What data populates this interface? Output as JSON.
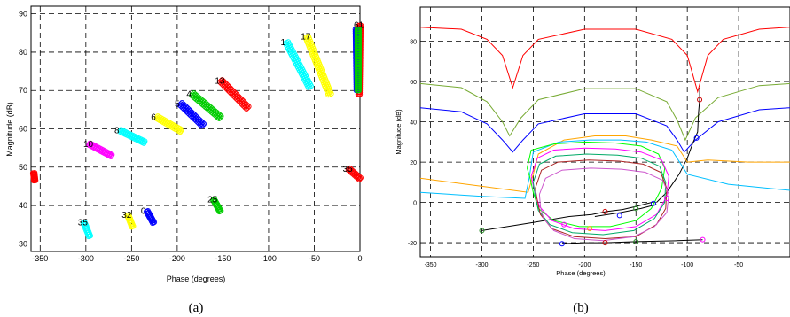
{
  "chart_data": [
    {
      "panel": "(a)",
      "type": "scatter",
      "xlabel": "Phase (degrees)",
      "ylabel": "Magnitude (dB)",
      "xlim": [
        -360,
        0
      ],
      "ylim": [
        28,
        92
      ],
      "xticks": [
        -350,
        -300,
        -250,
        -200,
        -150,
        -100,
        -50,
        0
      ],
      "yticks": [
        30,
        40,
        50,
        60,
        70,
        80,
        90
      ],
      "grid": "dashed",
      "clusters": [
        {
          "label": "1",
          "color": "#00ffff",
          "x0": -80,
          "y0": 82.5,
          "x1": -55,
          "y1": 71,
          "width": 4
        },
        {
          "label": "17",
          "color": "#ffff00",
          "x0": -58,
          "y0": 84,
          "x1": -33,
          "y1": 69,
          "width": 4
        },
        {
          "label": "61",
          "color": "#ff0000",
          "x0": 0,
          "y0": 87,
          "x1": -1,
          "y1": 69,
          "width": 2.5
        },
        {
          "label": "",
          "color": "#0000ff",
          "x0": -4,
          "y0": 86,
          "x1": -3,
          "y1": 70,
          "width": 2.5
        },
        {
          "label": "",
          "color": "#00cc00",
          "x0": -2,
          "y0": 86,
          "x1": -2,
          "y1": 70,
          "width": 2.5
        },
        {
          "label": "13",
          "color": "#ff0000",
          "x0": -152,
          "y0": 72.5,
          "x1": -123,
          "y1": 65.5,
          "width": 4
        },
        {
          "label": "4",
          "color": "#00cc00",
          "x0": -183,
          "y0": 69,
          "x1": -153,
          "y1": 63,
          "width": 4
        },
        {
          "label": "5",
          "color": "#0000ff",
          "x0": -196,
          "y0": 66.5,
          "x1": -172,
          "y1": 61,
          "width": 4
        },
        {
          "label": "6",
          "color": "#ffff00",
          "x0": -222,
          "y0": 63,
          "x1": -196,
          "y1": 59.5,
          "width": 3.5
        },
        {
          "label": "8",
          "color": "#00ffff",
          "x0": -262,
          "y0": 59.5,
          "x1": -236,
          "y1": 56.5,
          "width": 3
        },
        {
          "label": "10",
          "color": "#ff00ff",
          "x0": -296,
          "y0": 56,
          "x1": -272,
          "y1": 53,
          "width": 3
        },
        {
          "label": "",
          "color": "#ff0000",
          "x0": -357,
          "y0": 48.5,
          "x1": -356,
          "y1": 46.5,
          "width": 2.5
        },
        {
          "label": "35",
          "color": "#ff0000",
          "x0": -12,
          "y0": 49.5,
          "x1": 0,
          "y1": 47,
          "width": 3
        },
        {
          "label": "25",
          "color": "#00cc00",
          "x0": -160,
          "y0": 41.5,
          "x1": -153,
          "y1": 38.5,
          "width": 2.5
        },
        {
          "label": "0",
          "color": "#0000ff",
          "x0": -233,
          "y0": 38.5,
          "x1": -226,
          "y1": 35.5,
          "width": 2.5
        },
        {
          "label": "32",
          "color": "#ffff00",
          "x0": -254,
          "y0": 37.5,
          "x1": -249,
          "y1": 34.5,
          "width": 2.5
        },
        {
          "label": "35",
          "color": "#00ffff",
          "x0": -302,
          "y0": 35.5,
          "x1": -296,
          "y1": 32,
          "width": 2.5
        }
      ]
    },
    {
      "panel": "(b)",
      "type": "line",
      "xlabel": "Phase (degrees)",
      "ylabel": "Magnitude (dB)",
      "xlim": [
        -360,
        0
      ],
      "ylim": [
        -27,
        97
      ],
      "xticks": [
        -350,
        -300,
        -250,
        -200,
        -150,
        -100,
        -50
      ],
      "yticks": [
        -20,
        0,
        20,
        40,
        60,
        80
      ],
      "grid": "dashed",
      "series": [
        {
          "color": "#ff0000",
          "points": [
            [
              -360,
              87
            ],
            [
              -320,
              86
            ],
            [
              -295,
              81
            ],
            [
              -280,
              73
            ],
            [
              -270,
              57
            ],
            [
              -260,
              73
            ],
            [
              -245,
              81
            ],
            [
              -200,
              86
            ],
            [
              -150,
              86
            ],
            [
              -115,
              81
            ],
            [
              -100,
              73
            ],
            [
              -90,
              55
            ],
            [
              -80,
              73
            ],
            [
              -65,
              81
            ],
            [
              -30,
              86
            ],
            [
              0,
              87
            ]
          ]
        },
        {
          "color": "#77aa33",
          "points": [
            [
              -360,
              59
            ],
            [
              -320,
              57
            ],
            [
              -295,
              50
            ],
            [
              -280,
              40
            ],
            [
              -273,
              33
            ],
            [
              -262,
              42
            ],
            [
              -245,
              51
            ],
            [
              -200,
              56.5
            ],
            [
              -150,
              56.5
            ],
            [
              -120,
              50
            ],
            [
              -110,
              41
            ],
            [
              -102,
              31
            ],
            [
              -92,
              42
            ],
            [
              -70,
              52
            ],
            [
              -30,
              58
            ],
            [
              0,
              59
            ]
          ]
        },
        {
          "color": "#0000ff",
          "points": [
            [
              -360,
              47
            ],
            [
              -320,
              45
            ],
            [
              -295,
              39
            ],
            [
              -280,
              31
            ],
            [
              -270,
              25
            ],
            [
              -260,
              31
            ],
            [
              -245,
              39
            ],
            [
              -200,
              44
            ],
            [
              -150,
              44
            ],
            [
              -120,
              38
            ],
            [
              -110,
              31
            ],
            [
              -103,
              25
            ],
            [
              -92,
              31
            ],
            [
              -70,
              40
            ],
            [
              -30,
              46
            ],
            [
              0,
              47
            ]
          ]
        },
        {
          "color": "#000000",
          "points": [
            [
              -130,
              0
            ],
            [
              -120,
              5
            ],
            [
              -108,
              14
            ],
            [
              -100,
              22
            ],
            [
              -95,
              29
            ],
            [
              -90,
              35
            ],
            [
              -89,
              45
            ],
            [
              -88,
              51
            ],
            [
              -88,
              57
            ]
          ]
        },
        {
          "color": "#000000",
          "points": [
            [
              -300,
              -14
            ],
            [
              -250,
              -10
            ],
            [
              -215,
              -7
            ],
            [
              -193,
              -6
            ],
            [
              -178,
              -4.5
            ],
            [
              -163,
              -3.5
            ],
            [
              -150,
              -2
            ],
            [
              -135,
              0
            ]
          ]
        },
        {
          "color": "#000000",
          "points": [
            [
              -222,
              -20.5
            ],
            [
              -200,
              -20
            ],
            [
              -180,
              -20
            ],
            [
              -150,
              -19.5
            ],
            [
              -110,
              -19
            ],
            [
              -85,
              -18.5
            ]
          ]
        },
        {
          "color": "#000000",
          "points": [
            [
              -130,
              -1
            ],
            [
              -145,
              -3
            ],
            [
              -165,
              -5
            ],
            [
              -190,
              -7
            ]
          ]
        },
        {
          "color": "#ffa500",
          "points": [
            [
              -360,
              12
            ],
            [
              -300,
              8
            ],
            [
              -255,
              5
            ],
            [
              -250,
              14
            ],
            [
              -245,
              24
            ],
            [
              -220,
              31
            ],
            [
              -190,
              33
            ],
            [
              -160,
              33
            ],
            [
              -135,
              31
            ],
            [
              -110,
              28
            ],
            [
              -100,
              20
            ],
            [
              -80,
              21
            ],
            [
              -40,
              20
            ],
            [
              0,
              20
            ]
          ]
        },
        {
          "color": "#00bfff",
          "points": [
            [
              -360,
              5
            ],
            [
              -300,
              3
            ],
            [
              -258,
              2
            ],
            [
              -254,
              12
            ],
            [
              -250,
              25
            ],
            [
              -225,
              30
            ],
            [
              -195,
              31
            ],
            [
              -165,
              31
            ],
            [
              -140,
              30
            ],
            [
              -115,
              26
            ],
            [
              -100,
              14
            ],
            [
              -60,
              9
            ],
            [
              -20,
              7
            ],
            [
              0,
              6
            ]
          ]
        },
        {
          "color": "#00ff00",
          "points": [
            [
              -256,
              17
            ],
            [
              -252,
              26
            ],
            [
              -230,
              29
            ],
            [
              -200,
              30
            ],
            [
              -170,
              29.5
            ],
            [
              -145,
              28
            ],
            [
              -128,
              24
            ],
            [
              -122,
              17
            ],
            [
              -125,
              7
            ],
            [
              -135,
              -3
            ],
            [
              -150,
              -9
            ],
            [
              -175,
              -12
            ],
            [
              -205,
              -12
            ],
            [
              -230,
              -9
            ],
            [
              -245,
              -3
            ],
            [
              -250,
              5
            ],
            [
              -253,
              12
            ],
            [
              -256,
              17
            ]
          ]
        },
        {
          "color": "#ff00ff",
          "points": [
            [
              -252,
              13
            ],
            [
              -246,
              22
            ],
            [
              -230,
              26
            ],
            [
              -200,
              27
            ],
            [
              -170,
              26.5
            ],
            [
              -145,
              25
            ],
            [
              -125,
              21
            ],
            [
              -118,
              13
            ],
            [
              -120,
              3
            ],
            [
              -130,
              -6
            ],
            [
              -150,
              -12
            ],
            [
              -180,
              -14
            ],
            [
              -210,
              -13
            ],
            [
              -232,
              -9
            ],
            [
              -244,
              -2
            ],
            [
              -249,
              6
            ],
            [
              -252,
              13
            ]
          ]
        },
        {
          "color": "#00aa66",
          "points": [
            [
              -250,
              10
            ],
            [
              -244,
              19
            ],
            [
              -228,
              23
            ],
            [
              -198,
              24
            ],
            [
              -168,
              23.5
            ],
            [
              -145,
              22
            ],
            [
              -127,
              18
            ],
            [
              -121,
              10
            ],
            [
              -122,
              0
            ],
            [
              -132,
              -8
            ],
            [
              -152,
              -14
            ],
            [
              -182,
              -16
            ],
            [
              -212,
              -15
            ],
            [
              -234,
              -11
            ],
            [
              -245,
              -4
            ],
            [
              -248,
              3
            ],
            [
              -250,
              10
            ]
          ]
        },
        {
          "color": "#aa2222",
          "points": [
            [
              -248,
              7
            ],
            [
              -242,
              16
            ],
            [
              -226,
              20
            ],
            [
              -196,
              21
            ],
            [
              -166,
              20.5
            ],
            [
              -143,
              19
            ],
            [
              -126,
              15
            ],
            [
              -120,
              7
            ],
            [
              -121,
              -3
            ],
            [
              -130,
              -11
            ],
            [
              -150,
              -17
            ],
            [
              -180,
              -18
            ],
            [
              -210,
              -17
            ],
            [
              -232,
              -13
            ],
            [
              -243,
              -6
            ],
            [
              -246,
              1
            ],
            [
              -248,
              7
            ]
          ]
        },
        {
          "color": "#cc55cc",
          "points": [
            [
              -244,
              4
            ],
            [
              -238,
              12
            ],
            [
              -222,
              16
            ],
            [
              -194,
              17
            ],
            [
              -164,
              16.5
            ],
            [
              -141,
              15
            ],
            [
              -124,
              11
            ],
            [
              -118,
              4
            ],
            [
              -120,
              -5
            ],
            [
              -132,
              -12
            ],
            [
              -152,
              -17
            ],
            [
              -182,
              -19
            ],
            [
              -210,
              -18
            ],
            [
              -230,
              -14
            ],
            [
              -240,
              -8
            ],
            [
              -243,
              -2
            ],
            [
              -244,
              4
            ]
          ]
        }
      ],
      "markers": [
        {
          "x": -300,
          "y": -14,
          "color": "#228b22"
        },
        {
          "x": -220,
          "y": -11,
          "color": "#ff00ff"
        },
        {
          "x": -195,
          "y": -13,
          "color": "#ffa500"
        },
        {
          "x": -166,
          "y": -6.5,
          "color": "#0000ff"
        },
        {
          "x": -180,
          "y": -4.5,
          "color": "#cc0000"
        },
        {
          "x": -150,
          "y": -3,
          "color": "#228b22"
        },
        {
          "x": -133,
          "y": -0.5,
          "color": "#0000ff"
        },
        {
          "x": -120,
          "y": 2,
          "color": "#ff00ff"
        },
        {
          "x": -88,
          "y": 51,
          "color": "#cc0000"
        },
        {
          "x": -91,
          "y": 32,
          "color": "#0000ff"
        },
        {
          "x": -222,
          "y": -20.5,
          "color": "#0000ff"
        },
        {
          "x": -180,
          "y": -20,
          "color": "#cc0000"
        },
        {
          "x": -150,
          "y": -19.5,
          "color": "#228b22"
        },
        {
          "x": -85,
          "y": -18.5,
          "color": "#ff00ff"
        }
      ]
    }
  ]
}
